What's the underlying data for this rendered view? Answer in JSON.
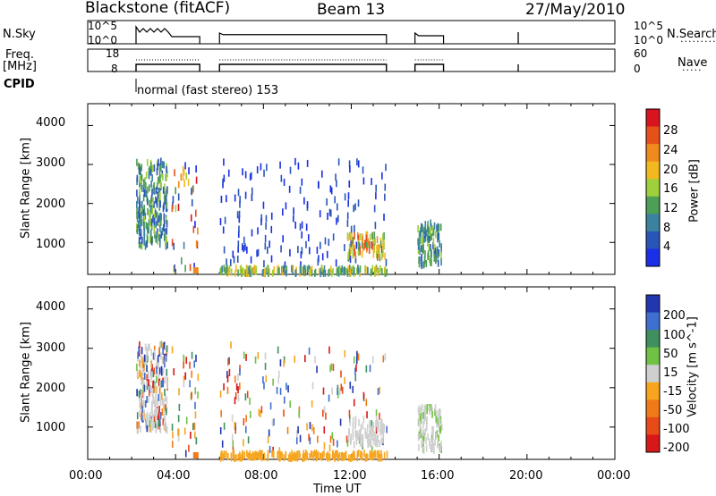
{
  "header": {
    "station": "Blackstone (fitACF)",
    "beam": "Beam 13",
    "date": "27/May/2010"
  },
  "panels": {
    "nsky_label": "N.Sky",
    "nsky_ticks": [
      "10^5",
      "10^0"
    ],
    "nsearch_label": "N.Search",
    "nsearch_ticks": [
      "10^5",
      "10^0"
    ],
    "freq_label_1": "Freq.",
    "freq_label_2": "[MHz]",
    "freq_ticks": [
      "18",
      "8"
    ],
    "nave_label": "Nave",
    "nave_ticks": [
      "60",
      "0"
    ],
    "cpid_label": "CPID",
    "cpid_text": "normal (fast stereo) 153"
  },
  "chart_data": [
    {
      "type": "heatmap",
      "title": "",
      "xlabel": "Time UT",
      "ylabel": "Slant Range [km]",
      "x_ticks": [
        "00:00",
        "04:00",
        "08:00",
        "12:00",
        "16:00",
        "20:00",
        "00:00"
      ],
      "y_ticks": [
        "1000",
        "2000",
        "3000",
        "4000"
      ],
      "xlim_hours": [
        0,
        24
      ],
      "ylim_km": [
        180,
        4560
      ],
      "colorbar": {
        "label": "Power [dB]",
        "ticks": [
          "4",
          "8",
          "12",
          "16",
          "20",
          "24",
          "28"
        ],
        "colors": [
          "#1a2fe6",
          "#2a55b8",
          "#3b82a0",
          "#4d9f55",
          "#9fcf3a",
          "#f2b81f",
          "#f08a1c",
          "#e8501a",
          "#d8151f"
        ]
      },
      "data_intervals_hours": [
        [
          2.2,
          5.1
        ],
        [
          6.0,
          13.6
        ],
        [
          14.9,
          16.2
        ]
      ],
      "features": [
        {
          "t": [
            2.3,
            3.6
          ],
          "range_km": [
            1000,
            3100
          ],
          "level": "low-mid"
        },
        {
          "t": [
            11.8,
            13.5
          ],
          "range_km": [
            500,
            1200
          ],
          "level": "high"
        },
        {
          "t": [
            15.0,
            16.1
          ],
          "range_km": [
            400,
            1500
          ],
          "level": "mid"
        }
      ]
    },
    {
      "type": "heatmap",
      "title": "",
      "xlabel": "Time UT",
      "ylabel": "Slant Range [km]",
      "x_ticks": [
        "00:00",
        "04:00",
        "08:00",
        "12:00",
        "16:00",
        "20:00",
        "00:00"
      ],
      "y_ticks": [
        "1000",
        "2000",
        "3000",
        "4000"
      ],
      "xlim_hours": [
        0,
        24
      ],
      "ylim_km": [
        180,
        4560
      ],
      "colorbar": {
        "label": "Velocity [m s^-1]",
        "ticks": [
          "200",
          "100",
          "50",
          "15",
          "-15",
          "-50",
          "-100",
          "-200"
        ],
        "colors": [
          "#2236b0",
          "#3f6fd0",
          "#3f8f5f",
          "#6fc244",
          "#cfcfcf",
          "#f7a51f",
          "#f07a18",
          "#e84a18",
          "#d81818"
        ]
      },
      "data_intervals_hours": [
        [
          2.2,
          5.1
        ],
        [
          6.0,
          13.6
        ],
        [
          14.9,
          16.2
        ]
      ]
    }
  ]
}
